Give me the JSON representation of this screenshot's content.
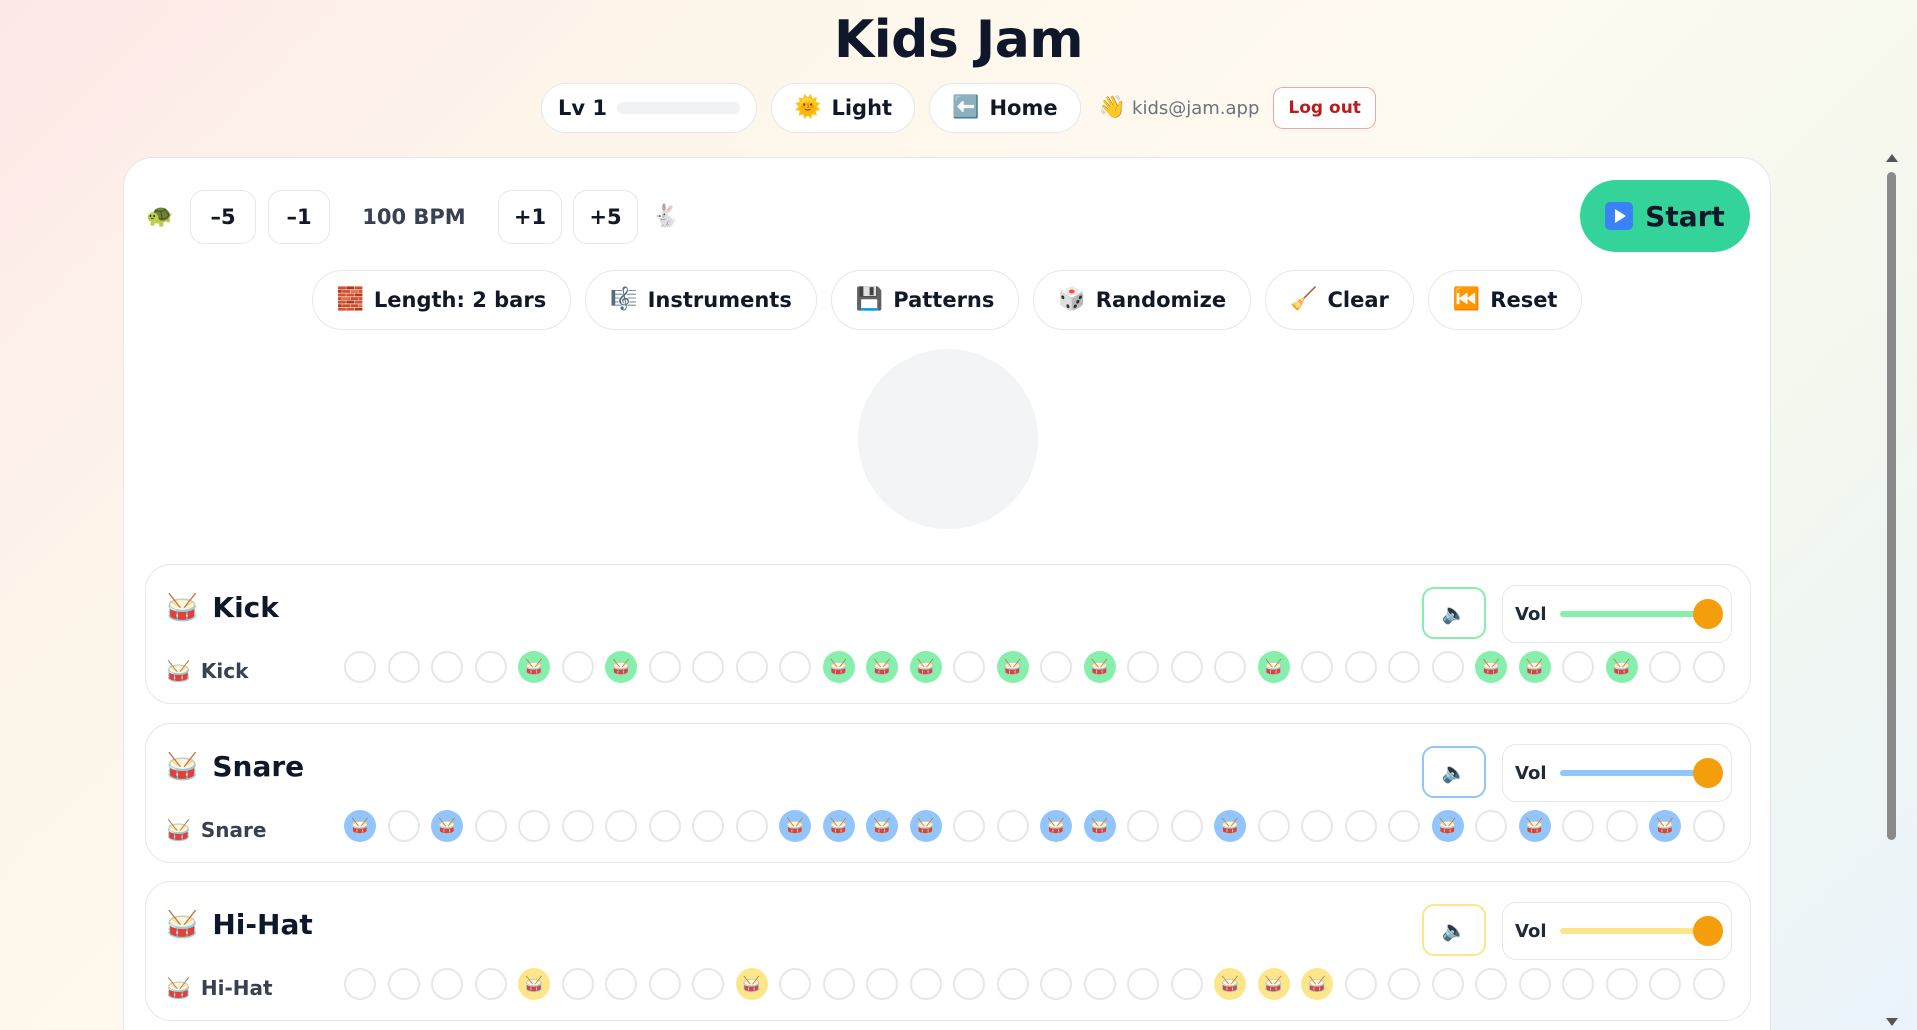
{
  "app": {
    "title": "Kids Jam"
  },
  "topbar": {
    "level": {
      "label": "Lv 1",
      "progress": 0
    },
    "theme": {
      "emoji": "🌞",
      "label": "Light"
    },
    "home": {
      "emoji": "⬅️",
      "label": "Home"
    },
    "user": {
      "emoji": "👋",
      "email": "kids@jam.app"
    },
    "logout_label": "Log out"
  },
  "tempo": {
    "slow_icon": "🐢",
    "minus5": "–5",
    "minus1": "–1",
    "bpm_text": "100 BPM",
    "plus1": "+1",
    "plus5": "+5",
    "fast_icon": "🐇"
  },
  "start": {
    "label": "Start",
    "icon": "play-icon"
  },
  "toolbar": [
    {
      "id": "length",
      "emoji": "🧱",
      "label": "Length: 2 bars"
    },
    {
      "id": "instruments",
      "emoji": "🎼",
      "label": "Instruments"
    },
    {
      "id": "patterns",
      "emoji": "💾",
      "label": "Patterns"
    },
    {
      "id": "randomize",
      "emoji": "🎲",
      "label": "Randomize"
    },
    {
      "id": "clear",
      "emoji": "🧹",
      "label": "Clear"
    },
    {
      "id": "reset",
      "emoji": "⏮️",
      "label": "Reset"
    }
  ],
  "tracks": [
    {
      "name": "Kick",
      "row_label": "Kick",
      "icon": "drum-icon",
      "color": "#86efac",
      "vol_label": "Vol",
      "volume": 1.0,
      "steps": [
        0,
        0,
        0,
        0,
        1,
        0,
        1,
        0,
        0,
        0,
        0,
        1,
        1,
        1,
        0,
        1,
        0,
        1,
        0,
        0,
        0,
        1,
        0,
        0,
        0,
        0,
        1,
        1,
        0,
        1,
        0,
        0
      ]
    },
    {
      "name": "Snare",
      "row_label": "Snare",
      "icon": "drum-icon",
      "color": "#93c5fd",
      "vol_label": "Vol",
      "volume": 1.0,
      "steps": [
        1,
        0,
        1,
        0,
        0,
        0,
        0,
        0,
        0,
        0,
        1,
        1,
        1,
        1,
        0,
        0,
        1,
        1,
        0,
        0,
        1,
        0,
        0,
        0,
        0,
        1,
        0,
        1,
        0,
        0,
        1,
        0
      ]
    },
    {
      "name": "Hi-Hat",
      "row_label": "Hi-Hat",
      "icon": "drum-icon",
      "color": "#fde68a",
      "vol_label": "Vol",
      "volume": 1.0,
      "steps": [
        0,
        0,
        0,
        0,
        1,
        0,
        0,
        0,
        0,
        1,
        0,
        0,
        0,
        0,
        0,
        0,
        0,
        0,
        0,
        0,
        1,
        1,
        1,
        0,
        0,
        0,
        0,
        0,
        0,
        0,
        0,
        0
      ]
    }
  ],
  "colors": {
    "accent": "#34d399",
    "thumb": "#f59e0b",
    "logout": "#b91c1c"
  }
}
